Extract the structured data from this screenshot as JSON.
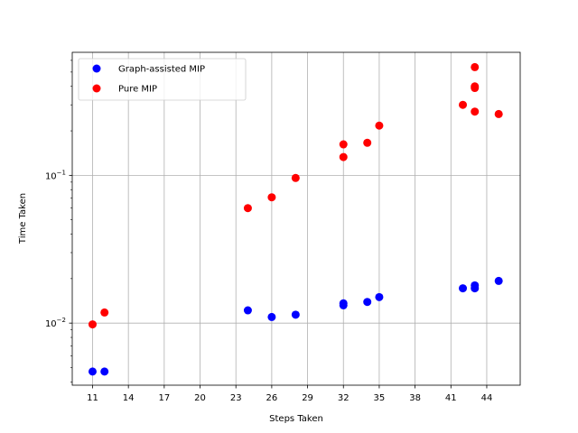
{
  "chart_data": {
    "type": "scatter",
    "xlabel": "Steps Taken",
    "ylabel": "Time Taken",
    "xlim": [
      9.3,
      46.8
    ],
    "ylim": [
      0.0038,
      0.68
    ],
    "yscale": "log",
    "x_ticks": [
      11,
      14,
      17,
      20,
      23,
      26,
      29,
      32,
      35,
      38,
      41,
      44
    ],
    "y_ticks": [
      {
        "value": 0.01,
        "base": "10",
        "exp": "−2"
      },
      {
        "value": 0.1,
        "base": "10",
        "exp": "−1"
      }
    ],
    "grid": true,
    "legend_position": "upper left",
    "series": [
      {
        "name": "Graph-assisted MIP",
        "color": "#0000ff",
        "points": [
          {
            "x": 11,
            "y": 0.0047
          },
          {
            "x": 12,
            "y": 0.0047
          },
          {
            "x": 24,
            "y": 0.0122
          },
          {
            "x": 26,
            "y": 0.011
          },
          {
            "x": 28,
            "y": 0.0114
          },
          {
            "x": 32,
            "y": 0.0132
          },
          {
            "x": 32,
            "y": 0.0136
          },
          {
            "x": 34,
            "y": 0.0139
          },
          {
            "x": 35,
            "y": 0.015
          },
          {
            "x": 42,
            "y": 0.0172
          },
          {
            "x": 43,
            "y": 0.0172
          },
          {
            "x": 43,
            "y": 0.018
          },
          {
            "x": 45,
            "y": 0.0193
          }
        ]
      },
      {
        "name": "Pure MIP",
        "color": "#ff0000",
        "points": [
          {
            "x": 11,
            "y": 0.0098
          },
          {
            "x": 12,
            "y": 0.0118
          },
          {
            "x": 24,
            "y": 0.06
          },
          {
            "x": 26,
            "y": 0.071
          },
          {
            "x": 28,
            "y": 0.096
          },
          {
            "x": 32,
            "y": 0.133
          },
          {
            "x": 32,
            "y": 0.162
          },
          {
            "x": 34,
            "y": 0.166
          },
          {
            "x": 35,
            "y": 0.217
          },
          {
            "x": 42,
            "y": 0.3
          },
          {
            "x": 43,
            "y": 0.27
          },
          {
            "x": 43,
            "y": 0.39
          },
          {
            "x": 43,
            "y": 0.4
          },
          {
            "x": 43,
            "y": 0.54
          },
          {
            "x": 45,
            "y": 0.26
          }
        ]
      }
    ]
  }
}
